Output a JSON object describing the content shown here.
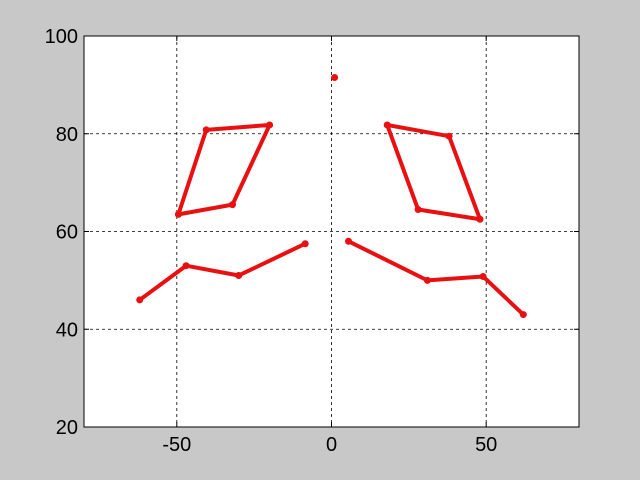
{
  "chart_data": {
    "type": "line",
    "title": "",
    "xlabel": "",
    "ylabel": "",
    "xlim": [
      -80,
      80
    ],
    "ylim": [
      20,
      100
    ],
    "xticks": [
      -50,
      0,
      50
    ],
    "yticks": [
      20,
      40,
      60,
      80,
      100
    ],
    "xtick_labels": [
      "-50",
      "0",
      "50"
    ],
    "ytick_labels": [
      "20",
      "40",
      "60",
      "80",
      "100"
    ],
    "grid": true,
    "grid_style": "dotted",
    "line_color": "#e81010",
    "series": [
      {
        "closed": true,
        "points": [
          [
            -40.5,
            80.8
          ],
          [
            -20,
            81.8
          ],
          [
            -32,
            65.5
          ],
          [
            -49.5,
            63.5
          ],
          [
            -40.5,
            80.8
          ]
        ]
      },
      {
        "closed": true,
        "points": [
          [
            18,
            81.8
          ],
          [
            38,
            79.5
          ],
          [
            48,
            62.5
          ],
          [
            28,
            64.5
          ],
          [
            18,
            81.8
          ]
        ]
      },
      {
        "closed": false,
        "points": [
          [
            -62,
            46
          ],
          [
            -47,
            53
          ],
          [
            -30,
            51
          ],
          [
            -8.5,
            57.5
          ]
        ]
      },
      {
        "closed": false,
        "points": [
          [
            5.5,
            58
          ],
          [
            31,
            50
          ],
          [
            49,
            50.8
          ],
          [
            62,
            43
          ]
        ]
      },
      {
        "closed": false,
        "points": [
          [
            1,
            91.5
          ]
        ]
      }
    ]
  }
}
